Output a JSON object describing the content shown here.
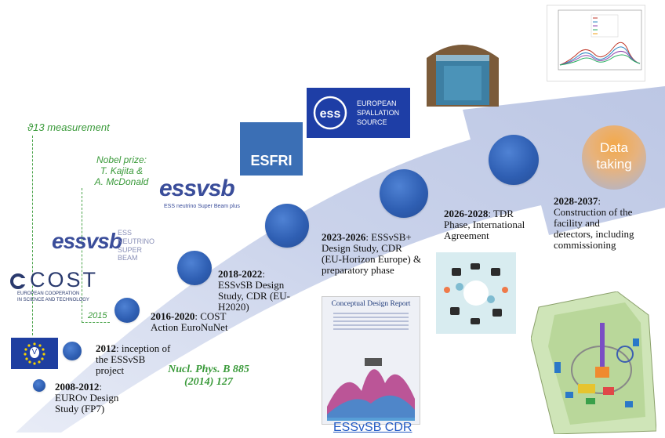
{
  "milestones": [
    {
      "years": "2008-2012",
      "text": ": EUROν Design Study (FP7)"
    },
    {
      "years": "2012",
      "text": ": inception of the ESSνSB project"
    },
    {
      "years": "2016-2020",
      "text": ": COST Action EuroNuNet"
    },
    {
      "years": "2018-2022",
      "text": ": ESSνSB Design Study, CDR (EU-H2020)"
    },
    {
      "years": "2023-2026",
      "text": ": ESSνSB+ Design Study, CDR (EU-Horizon Europe) & preparatory phase"
    },
    {
      "years": "2026-2028",
      "text": ": TDR Phase, International Agreement"
    },
    {
      "years": "2028-2037",
      "text": ": Construction of the facility and detectors, including commissioning"
    }
  ],
  "final_circle": {
    "line1": "Data",
    "line2": "taking"
  },
  "annotations": {
    "theta13": "ϑ13 measurement",
    "nobel_line1": "Nobel prize:",
    "nobel_line2": "T. Kajita &",
    "nobel_line3": "A. McDonald",
    "year_2015": "2015",
    "journal_line1": "Nucl. Phys. B 885",
    "journal_line2": "(2014) 127"
  },
  "logos": {
    "essvsb_plus_tag": "ESS neutrino Super Beam plus",
    "essvsb_tag_line1": "ESS",
    "essvsb_tag_line2": "NEUTRINO",
    "essvsb_tag_line3": "SUPER BEAM",
    "cost_name": "COST",
    "cost_sub1": "EUROPEAN COOPERATION",
    "cost_sub2": "IN SCIENCE AND TECHNOLOGY",
    "esfri": "ESFRI",
    "ess_line1": "EUROPEAN",
    "ess_line2": "SPALLATION",
    "ess_line3": "SOURCE",
    "eu_v": "V"
  },
  "cdr": {
    "header": "Conceptual Design Report",
    "caption": "ESSvSB CDR"
  },
  "colors": {
    "arrow": "#c9d3ea",
    "circle": "#2f5fb3",
    "green": "#3a9a3a",
    "esfri_bg": "#3b6fb5",
    "ess_bg": "#1e3ea6"
  }
}
